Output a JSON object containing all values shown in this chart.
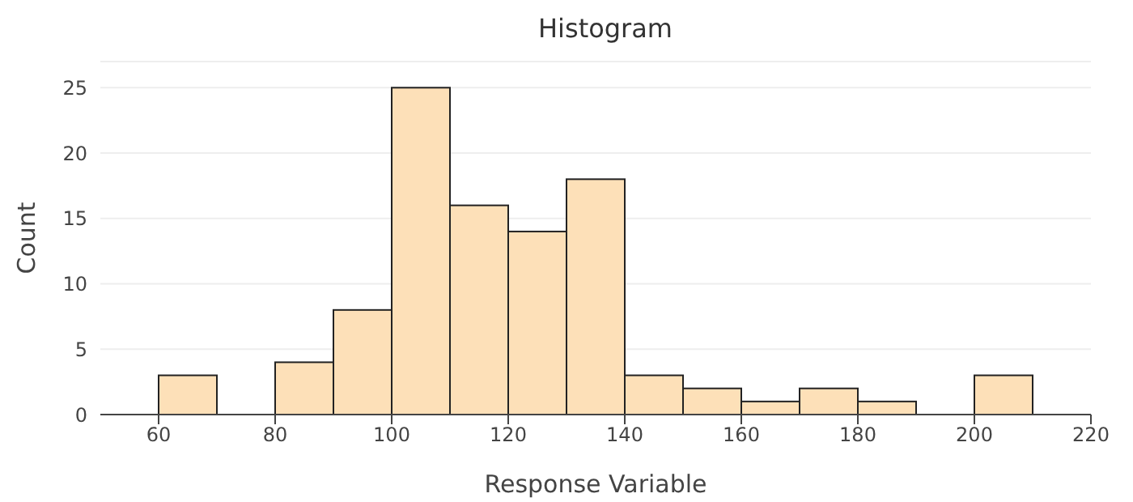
{
  "chart_data": {
    "type": "histogram",
    "title": "Histogram",
    "xlabel": "Response Variable",
    "ylabel": "Count",
    "bins": [
      60,
      70,
      80,
      90,
      100,
      110,
      120,
      130,
      140,
      150,
      160,
      170,
      180,
      190,
      200,
      210
    ],
    "values": [
      3,
      0,
      4,
      8,
      25,
      16,
      14,
      18,
      3,
      2,
      1,
      2,
      1,
      0,
      3
    ],
    "color": "#fde0b8",
    "xlim": [
      50,
      220
    ],
    "xticks": [
      60,
      80,
      100,
      120,
      140,
      160,
      180,
      200,
      220
    ],
    "ylim": [
      0,
      27
    ],
    "yticks": [
      0,
      5,
      10,
      15,
      20,
      25
    ],
    "grid": "y"
  }
}
